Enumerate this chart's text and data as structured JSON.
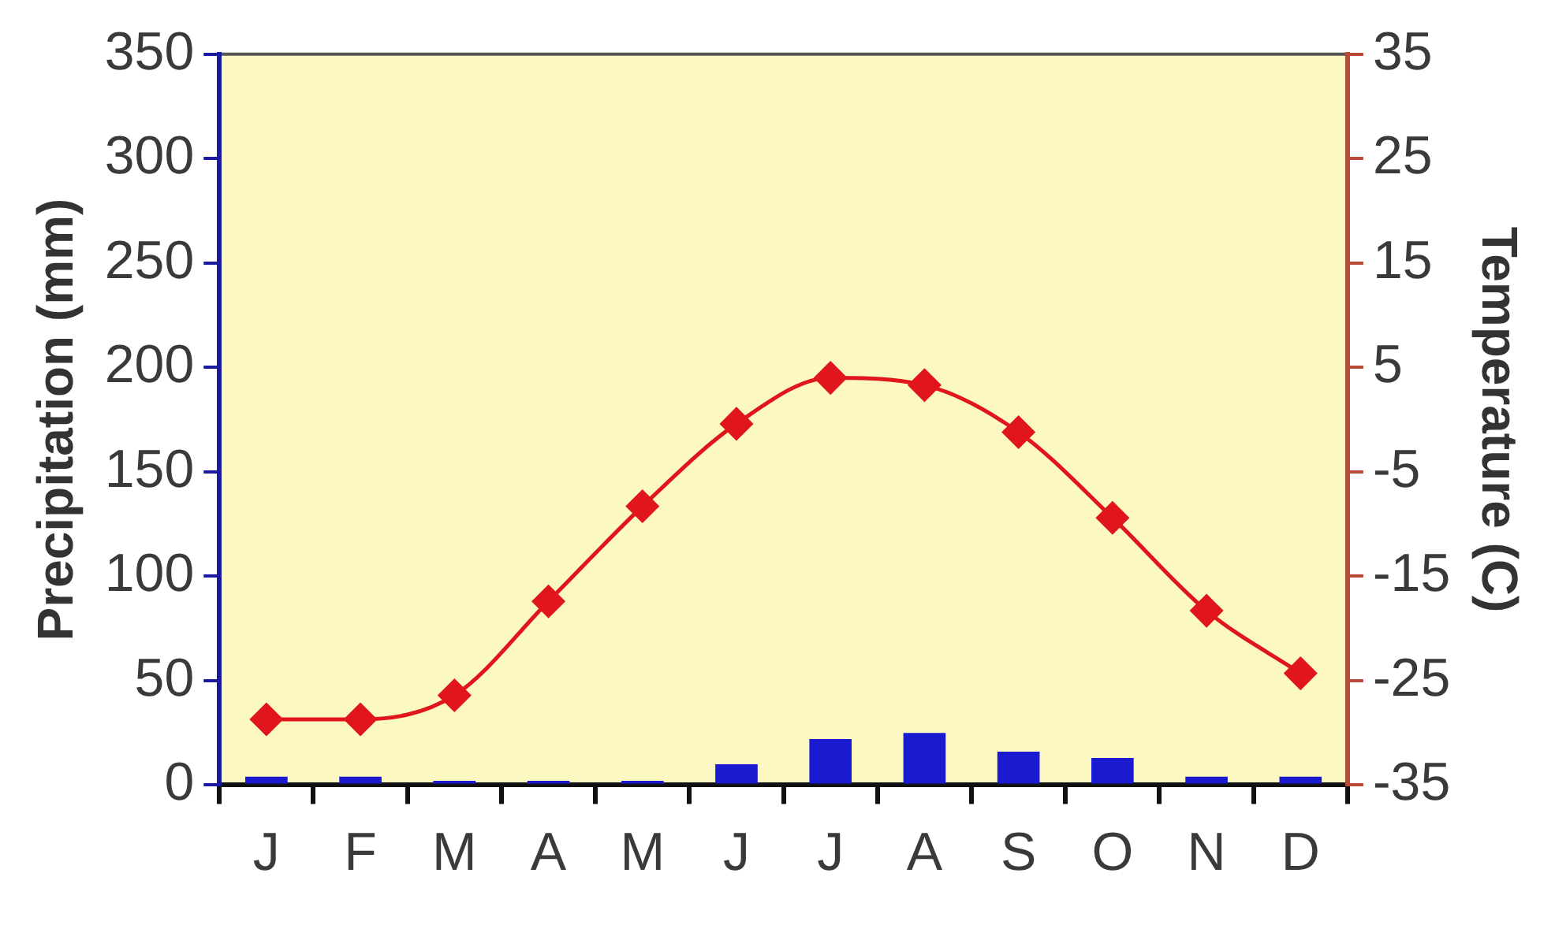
{
  "chart_data": {
    "type": "bar",
    "categories": [
      "J",
      "F",
      "M",
      "A",
      "M",
      "J",
      "J",
      "A",
      "S",
      "O",
      "N",
      "D"
    ],
    "ylabel": "Precipitation (mm)",
    "y2label": "Temperature (C)",
    "ylim": [
      0,
      350
    ],
    "yticks": [
      0,
      50,
      100,
      150,
      200,
      250,
      300,
      350
    ],
    "y2lim": [
      -35,
      35
    ],
    "y2ticks": [
      -35,
      -25,
      -15,
      -5,
      5,
      15,
      25,
      35
    ],
    "series": [
      {
        "color": "#1a1ad0",
        "values": [
          4,
          4,
          2,
          2,
          2,
          10,
          22,
          25,
          16,
          13,
          4,
          4
        ]
      },
      {
        "type": "line",
        "axis": "y2",
        "color": "#e0161c",
        "values": [
          -28.7,
          -28.7,
          -26.4,
          -17.4,
          -8.3,
          -0.4,
          4,
          3.3,
          -1.2,
          -9.4,
          -18.3,
          -24.3
        ]
      }
    ],
    "grid": false,
    "legend": false,
    "marker": "diamond",
    "line_style": "solid"
  }
}
